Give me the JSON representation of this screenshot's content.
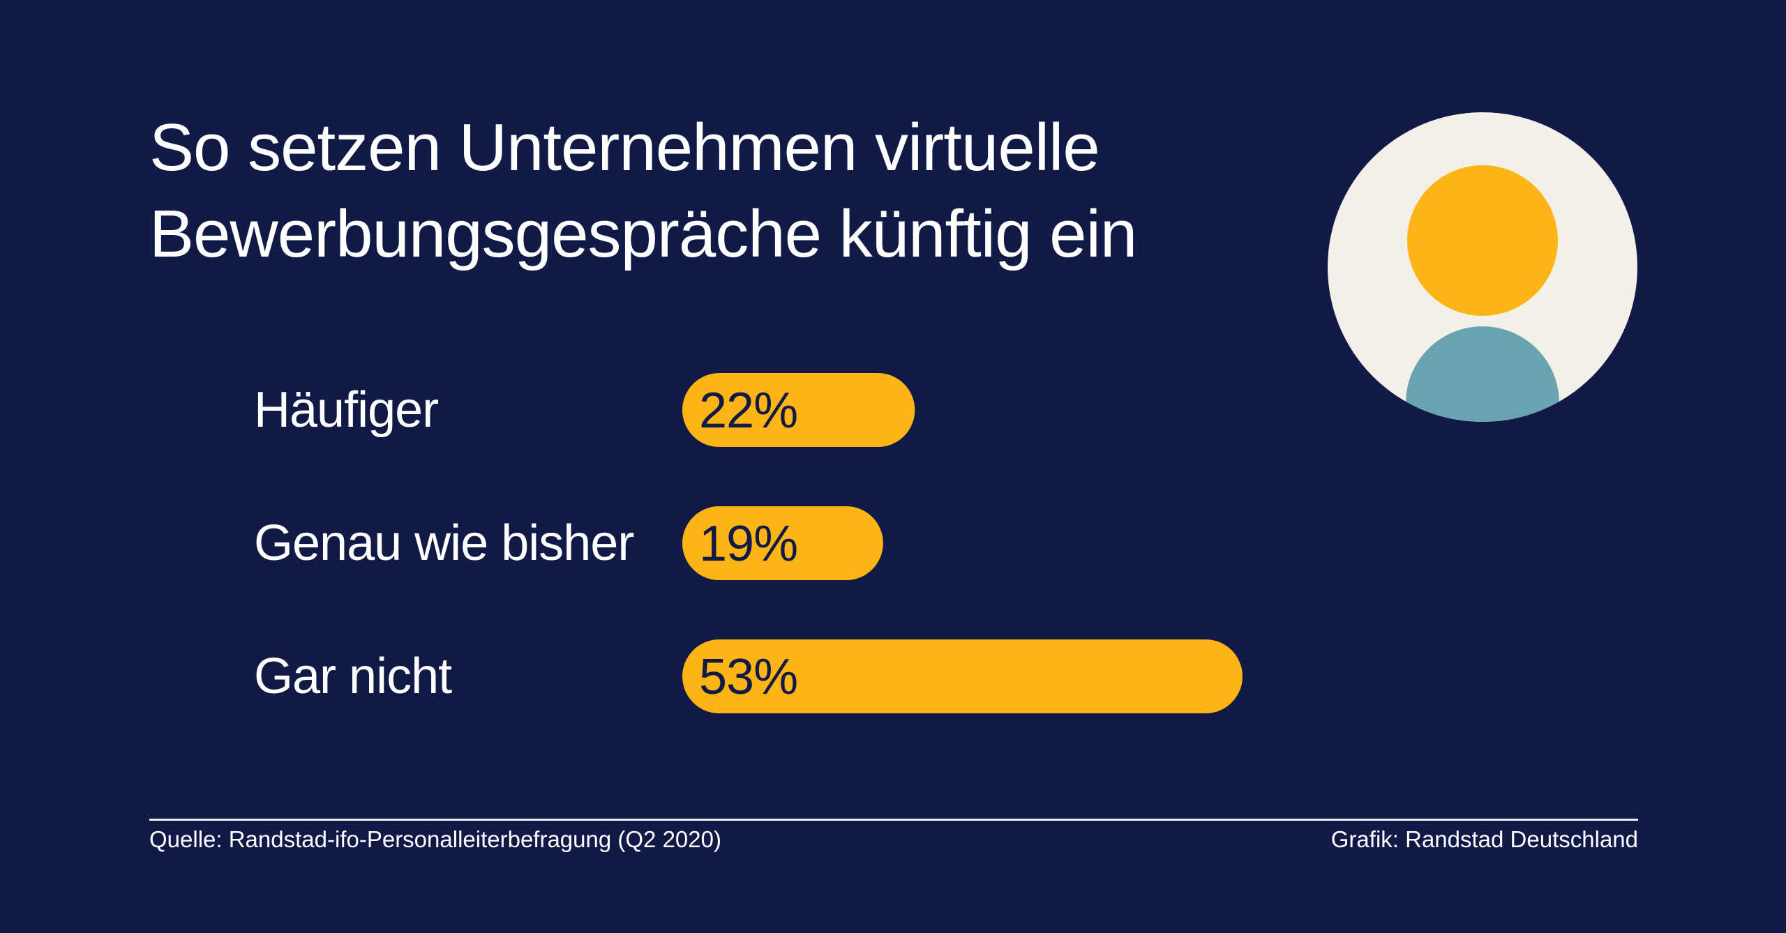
{
  "colors": {
    "background": "#111a46",
    "bar": "#fdb515",
    "text": "#ffffff",
    "bar_text": "#111a46",
    "avatar_bg": "#f3f0ea",
    "avatar_head": "#fdb515",
    "avatar_body": "#6aa3b0"
  },
  "title_lines": [
    "So setzen Unternehmen virtuelle",
    "Bewerbungsgespräche künftig ein"
  ],
  "icon": "person-avatar-icon",
  "chart_data": {
    "type": "bar",
    "orientation": "horizontal",
    "title": "So setzen Unternehmen virtuelle Bewerbungsgespräche künftig ein",
    "categories": [
      "Häufiger",
      "Genau wie bisher",
      "Gar nicht"
    ],
    "values": [
      22,
      19,
      53
    ],
    "value_labels": [
      "22%",
      "19%",
      "53%"
    ],
    "unit": "%",
    "xlim": [
      0,
      53
    ],
    "grid": false,
    "legend": "none"
  },
  "footer": {
    "source": "Quelle: Randstad-ifo-Personalleiterbefragung (Q2 2020)",
    "credit": "Grafik: Randstad Deutschland"
  }
}
